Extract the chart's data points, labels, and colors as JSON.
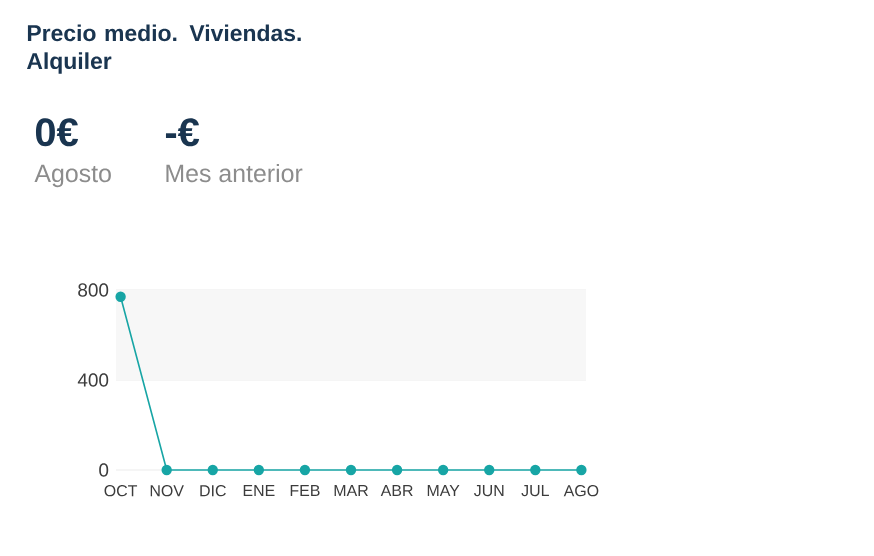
{
  "chart_data": {
    "type": "line",
    "title": "Precio medio. Viviendas. Alquiler",
    "annotations": [
      "0€",
      "Agosto",
      "-€",
      "Mes anterior"
    ],
    "categories": [
      "OCT",
      "NOV",
      "DIC",
      "ENE",
      "FEB",
      "MAR",
      "ABR",
      "MAY",
      "JUN",
      "JUL",
      "AGO"
    ],
    "series": [
      {
        "color": "#17a5a5",
        "values": [
          770,
          0,
          0,
          0,
          0,
          0,
          0,
          0,
          0,
          0,
          0
        ]
      }
    ],
    "ylim": [
      0,
      800
    ],
    "yticks": [
      0,
      400,
      800
    ],
    "grid": "y",
    "marker": "circle",
    "line_style": "solid",
    "bands": [
      {
        "axis": "y",
        "from": 400,
        "to": 800,
        "color": "#f7f7f7"
      }
    ]
  }
}
